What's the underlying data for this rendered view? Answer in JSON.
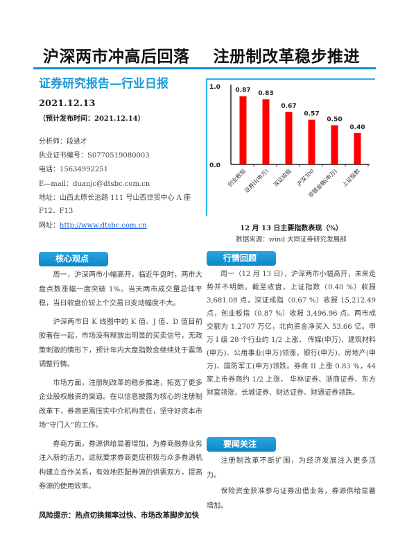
{
  "header": {
    "headline": "沪深两市冲高后回落    注册制改革稳步推进",
    "subtitle": "证券研究报告—行业日报",
    "date": "2021.12.13",
    "pub_date": "（预计发布时间：2021.12.14）"
  },
  "analyst": {
    "name": "分析师：段进才",
    "license": "执业证书编号：S0770519080003",
    "phone": "电话：15634992251",
    "email": "E—mail：duanjc@dtsbc.com.cn",
    "address": "地址：山西太原长治路 111 号山西世贸中心 A 座 F12、F13",
    "website_label": "网址：",
    "website": "http://www.dtsbc.com.cn"
  },
  "chart_data": {
    "type": "bar",
    "title": "12 月 13 日主要指数表现（%）",
    "source": "数据来源：wind 大同证券研究发展部",
    "categories": [
      "创业板指",
      "证券II(申万)",
      "深证成指",
      "沪深300",
      "非银金融(申万)",
      "上证指数"
    ],
    "values": [
      0.87,
      0.83,
      0.67,
      0.57,
      0.5,
      0.4
    ],
    "value_labels": [
      "0.87",
      "0.83",
      "0.67",
      "0.57",
      "0.50",
      "0.40"
    ],
    "ylim": [
      0,
      1.0
    ],
    "yticks": [
      "0.0",
      "1.0"
    ],
    "bar_color": "#ff0000",
    "grid": false
  },
  "core": {
    "title": "核心观点",
    "paragraphs": [
      "周一，沪深两市小幅高开，临近午盘时，两市大盘点数涨幅一度突破 1%。当天两市成交量总体平稳，当日收盘价较上个交易日变动幅度不大。",
      "沪深两市日 K 线图中的 K 值、J 值、D 值目前胶着在一起，市场没有释放出明显的买卖信号，无政策刺激的情形下，预计年内大盘指数会继续处于震荡调整行情。",
      "市场方面，注册制改革的稳步推进，拓宽了更多企业股权融资的渠道。在以信息披露为核心的注册制改革下，券商更需压实中介机构责任，坚守好资本市场“守门人”的工作。",
      "券商方面，券源供给显著增加，为券商融券业务注入新的活力。这就要求券商更应积极与众多券源机构建立合作关系，有效地匹配券源的供需双方，提高券源的使用效率。"
    ],
    "risk": "风险提示：热点切换频率过快、市场改革脚步加快"
  },
  "market": {
    "title": "行情回顾",
    "paragraphs": [
      "周一（12 月 13 日），沪深两市小幅高开，未来走势并不明朗。截至收盘，上证指数（0.40 %）收报 3,681.08 点，深证成指（0.67 %）收报 15,212.49 点，创业板指（0.87 %）收报 3,496.96 点。两市成交额为 1.2707 万亿，北向资金净买入 53.66 亿。申万 I 级 28 个行业约 1/2 上涨， 传媒(申万)、建筑材料(申万)、公用事业(申万)领涨，银行(申万)、房地产(申万)、国防军工(申万)领跌。券商 II 上涨 0.83 %，44 家上市券商约 1/2 上涨， 华林证券、浙商证券、东方财富领涨，长城证券、财达证券、财通证券领跌。"
    ]
  },
  "news": {
    "title": "要闻关注",
    "paragraphs": [
      "注册制改革不断扩围，为经济发展注入更多活力。",
      "保险资金获准参与证券出借业务，券源供给显著增加。"
    ]
  }
}
